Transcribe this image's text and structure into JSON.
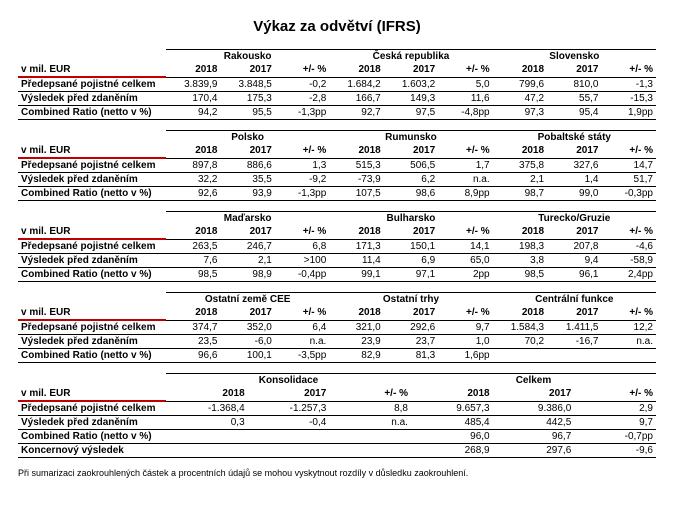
{
  "title": "Výkaz za odvětví (IFRS)",
  "unit_label": "v mil. EUR",
  "col_years": [
    "2018",
    "2017",
    "+/- %"
  ],
  "row_names": {
    "premiums": "Předepsané pojistné celkem",
    "profit": "Výsledek před zdaněním",
    "combined": "Combined Ratio (netto v %)",
    "group_result": "Koncernový výsledek"
  },
  "colors": {
    "red": "#c00000",
    "text": "#000000",
    "bg": "#ffffff"
  },
  "fontsize": {
    "title": 15,
    "body": 10,
    "footnote": 9
  },
  "blocks": [
    {
      "groups": [
        {
          "name": "Rakousko",
          "rows": {
            "premiums": [
              "3.839,9",
              "3.848,5",
              "-0,2"
            ],
            "profit": [
              "170,4",
              "175,3",
              "-2,8"
            ],
            "combined": [
              "94,2",
              "95,5",
              "-1,3pp"
            ]
          }
        },
        {
          "name": "Česká republika",
          "rows": {
            "premiums": [
              "1.684,2",
              "1.603,2",
              "5,0"
            ],
            "profit": [
              "166,7",
              "149,3",
              "11,6"
            ],
            "combined": [
              "92,7",
              "97,5",
              "-4,8pp"
            ]
          }
        },
        {
          "name": "Slovensko",
          "rows": {
            "premiums": [
              "799,6",
              "810,0",
              "-1,3"
            ],
            "profit": [
              "47,2",
              "55,7",
              "-15,3"
            ],
            "combined": [
              "97,3",
              "95,4",
              "1,9pp"
            ]
          }
        }
      ]
    },
    {
      "groups": [
        {
          "name": "Polsko",
          "rows": {
            "premiums": [
              "897,8",
              "886,6",
              "1,3"
            ],
            "profit": [
              "32,2",
              "35,5",
              "-9,2"
            ],
            "combined": [
              "92,6",
              "93,9",
              "-1,3pp"
            ]
          }
        },
        {
          "name": "Rumunsko",
          "rows": {
            "premiums": [
              "515,3",
              "506,5",
              "1,7"
            ],
            "profit": [
              "-73,9",
              "6,2",
              "n.a."
            ],
            "combined": [
              "107,5",
              "98,6",
              "8,9pp"
            ]
          }
        },
        {
          "name": "Pobaltské státy",
          "rows": {
            "premiums": [
              "375,8",
              "327,6",
              "14,7"
            ],
            "profit": [
              "2,1",
              "1,4",
              "51,7"
            ],
            "combined": [
              "98,7",
              "99,0",
              "-0,3pp"
            ]
          }
        }
      ]
    },
    {
      "groups": [
        {
          "name": "Maďarsko",
          "rows": {
            "premiums": [
              "263,5",
              "246,7",
              "6,8"
            ],
            "profit": [
              "7,6",
              "2,1",
              ">100"
            ],
            "combined": [
              "98,5",
              "98,9",
              "-0,4pp"
            ]
          }
        },
        {
          "name": "Bulharsko",
          "rows": {
            "premiums": [
              "171,3",
              "150,1",
              "14,1"
            ],
            "profit": [
              "11,4",
              "6,9",
              "65,0"
            ],
            "combined": [
              "99,1",
              "97,1",
              "2pp"
            ]
          }
        },
        {
          "name": "Turecko/Gruzie",
          "rows": {
            "premiums": [
              "198,3",
              "207,8",
              "-4,6"
            ],
            "profit": [
              "3,8",
              "9,4",
              "-58,9"
            ],
            "combined": [
              "98,5",
              "96,1",
              "2,4pp"
            ]
          }
        }
      ]
    },
    {
      "groups": [
        {
          "name": "Ostatní země CEE",
          "rows": {
            "premiums": [
              "374,7",
              "352,0",
              "6,4"
            ],
            "profit": [
              "23,5",
              "-6,0",
              "n.a."
            ],
            "combined": [
              "96,6",
              "100,1",
              "-3,5pp"
            ]
          }
        },
        {
          "name": "Ostatní trhy",
          "rows": {
            "premiums": [
              "321,0",
              "292,6",
              "9,7"
            ],
            "profit": [
              "23,9",
              "23,7",
              "1,0"
            ],
            "combined": [
              "82,9",
              "81,3",
              "1,6pp"
            ]
          }
        },
        {
          "name": "Centrální funkce",
          "rows": {
            "premiums": [
              "1.584,3",
              "1.411,5",
              "12,2"
            ],
            "profit": [
              "70,2",
              "-16,7",
              "n.a."
            ],
            "combined": [
              "",
              "",
              ""
            ]
          }
        }
      ]
    },
    {
      "groups": [
        {
          "name": "Konsolidace",
          "rows": {
            "premiums": [
              "-1.368,4",
              "-1.257,3",
              "8,8"
            ],
            "profit": [
              "0,3",
              "-0,4",
              "n.a."
            ],
            "combined": [
              "",
              "",
              ""
            ],
            "group_result": [
              "",
              "",
              ""
            ]
          }
        },
        {
          "name": "Celkem",
          "rows": {
            "premiums": [
              "9.657,3",
              "9.386,0",
              "2,9"
            ],
            "profit": [
              "485,4",
              "442,5",
              "9,7"
            ],
            "combined": [
              "96,0",
              "96,7",
              "-0,7pp"
            ],
            "group_result": [
              "268,9",
              "297,6",
              "-9,6"
            ]
          }
        }
      ]
    }
  ],
  "footnote": "Při sumarizaci zaokrouhlených částek a procentních údajů se mohou vyskytnout rozdíly v důsledku zaokrouhlení."
}
